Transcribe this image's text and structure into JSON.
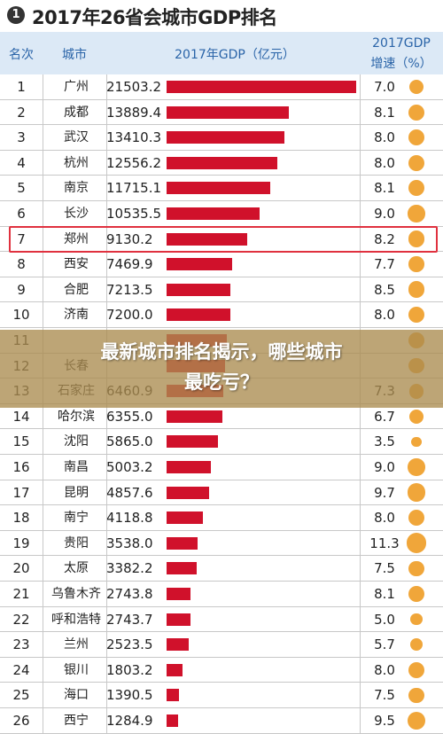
{
  "title": {
    "number": "1",
    "text": "2017年26省会城市GDP排名"
  },
  "headers": {
    "rank": "名次",
    "city": "城市",
    "gdp": "2017年GDP（亿元）",
    "growth_line1": "2017GDP",
    "growth_line2": "增速（%）"
  },
  "overlay": {
    "line1": "最新城市排名揭示，哪些城市",
    "line2": "最吃亏？"
  },
  "colors": {
    "bar": "#d0112b",
    "dot": "#f0a63a",
    "header_text": "#2a64a8",
    "highlight": "#e0313f"
  },
  "highlighted_rank": "7",
  "chart_data": {
    "type": "bar",
    "title": "2017年26省会城市GDP排名",
    "ylabel": "2017年GDP（亿元）",
    "rows": [
      {
        "rank": "1",
        "city": "广州",
        "gdp": "21503.2",
        "growth": "7.0"
      },
      {
        "rank": "2",
        "city": "成都",
        "gdp": "13889.4",
        "growth": "8.1"
      },
      {
        "rank": "3",
        "city": "武汉",
        "gdp": "13410.3",
        "growth": "8.0"
      },
      {
        "rank": "4",
        "city": "杭州",
        "gdp": "12556.2",
        "growth": "8.0"
      },
      {
        "rank": "5",
        "city": "南京",
        "gdp": "11715.1",
        "growth": "8.1"
      },
      {
        "rank": "6",
        "city": "长沙",
        "gdp": "10535.5",
        "growth": "9.0"
      },
      {
        "rank": "7",
        "city": "郑州",
        "gdp": "9130.2",
        "growth": "8.2"
      },
      {
        "rank": "8",
        "city": "西安",
        "gdp": "7469.9",
        "growth": "7.7"
      },
      {
        "rank": "9",
        "city": "合肥",
        "gdp": "7213.5",
        "growth": "8.5"
      },
      {
        "rank": "10",
        "city": "济南",
        "gdp": "7200.0",
        "growth": "8.0"
      },
      {
        "rank": "11",
        "city": "",
        "gdp": "",
        "growth": ""
      },
      {
        "rank": "12",
        "city": "长春",
        "gdp": "",
        "growth": ""
      },
      {
        "rank": "13",
        "city": "石家庄",
        "gdp": "6460.9",
        "growth": "7.3"
      },
      {
        "rank": "14",
        "city": "哈尔滨",
        "gdp": "6355.0",
        "growth": "6.7"
      },
      {
        "rank": "15",
        "city": "沈阳",
        "gdp": "5865.0",
        "growth": "3.5"
      },
      {
        "rank": "16",
        "city": "南昌",
        "gdp": "5003.2",
        "growth": "9.0"
      },
      {
        "rank": "17",
        "city": "昆明",
        "gdp": "4857.6",
        "growth": "9.7"
      },
      {
        "rank": "18",
        "city": "南宁",
        "gdp": "4118.8",
        "growth": "8.0"
      },
      {
        "rank": "19",
        "city": "贵阳",
        "gdp": "3538.0",
        "growth": "11.3"
      },
      {
        "rank": "20",
        "city": "太原",
        "gdp": "3382.2",
        "growth": "7.5"
      },
      {
        "rank": "21",
        "city": "乌鲁木齐",
        "gdp": "2743.8",
        "growth": "8.1"
      },
      {
        "rank": "22",
        "city": "呼和浩特",
        "gdp": "2743.7",
        "growth": "5.0"
      },
      {
        "rank": "23",
        "city": "兰州",
        "gdp": "2523.5",
        "growth": "5.7"
      },
      {
        "rank": "24",
        "city": "银川",
        "gdp": "1803.2",
        "growth": "8.0"
      },
      {
        "rank": "25",
        "city": "海口",
        "gdp": "1390.5",
        "growth": "7.5"
      },
      {
        "rank": "26",
        "city": "西宁",
        "gdp": "1284.9",
        "growth": "9.5"
      }
    ],
    "bar_values": [
      21503.2,
      13889.4,
      13410.3,
      12556.2,
      11715.1,
      10535.5,
      9130.2,
      7469.9,
      7213.5,
      7200.0,
      6800,
      6600,
      6460.9,
      6355.0,
      5865.0,
      5003.2,
      4857.6,
      4118.8,
      3538.0,
      3382.2,
      2743.8,
      2743.7,
      2523.5,
      1803.2,
      1390.5,
      1284.9
    ],
    "growth_values": [
      7.0,
      8.1,
      8.0,
      8.0,
      8.1,
      9.0,
      8.2,
      7.7,
      8.5,
      8.0,
      7.8,
      7.5,
      7.3,
      6.7,
      3.5,
      9.0,
      9.7,
      8.0,
      11.3,
      7.5,
      8.1,
      5.0,
      5.7,
      8.0,
      7.5,
      9.5
    ],
    "xlim": [
      0,
      21503.2
    ],
    "grid": true
  }
}
